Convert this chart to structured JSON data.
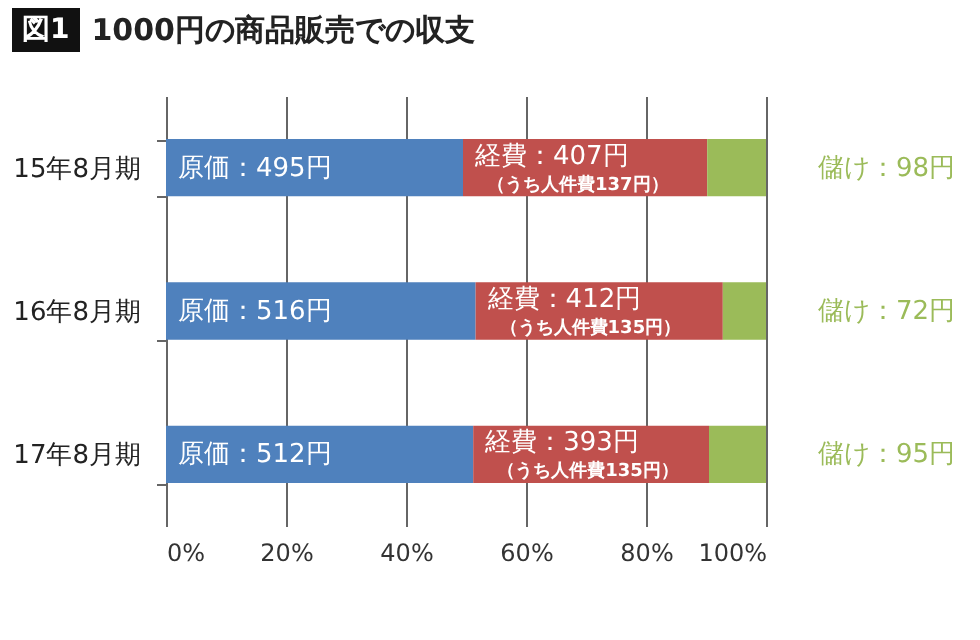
{
  "chart_data": {
    "type": "bar",
    "orientation": "horizontal",
    "stacked": true,
    "title": "1000円の商品販売での収支",
    "annotations": [
      "図1",
      {
        "text": "原価：495円",
        "x": 0,
        "y": "15年8月期"
      },
      {
        "text": "経費：407円",
        "x": 49.5,
        "y": "15年8月期"
      },
      {
        "text": "（うち人件費137円）",
        "x": 49.5,
        "y": "15年8月期"
      },
      {
        "text": "儲け：98円",
        "x": 100,
        "y": "15年8月期"
      },
      {
        "text": "原価：516円",
        "x": 0,
        "y": "16年8月期"
      },
      {
        "text": "経費：412円",
        "x": 51.6,
        "y": "16年8月期"
      },
      {
        "text": "（うち人件費135円）",
        "x": 51.6,
        "y": "16年8月期"
      },
      {
        "text": "儲け：72円",
        "x": 100,
        "y": "16年8月期"
      },
      {
        "text": "原価：512円",
        "x": 0,
        "y": "17年8月期"
      },
      {
        "text": "経費：393円",
        "x": 51.2,
        "y": "17年8月期"
      },
      {
        "text": "（うち人件費135円）",
        "x": 51.2,
        "y": "17年8月期"
      },
      {
        "text": "儲け：95円",
        "x": 100,
        "y": "17年8月期"
      }
    ],
    "categories": [
      "15年8月期",
      "16年8月期",
      "17年8月期"
    ],
    "series": [
      {
        "color": "#4f81bd",
        "values": [
          49.5,
          51.6,
          51.2
        ]
      },
      {
        "color": "#c0504d",
        "values": [
          40.7,
          41.2,
          39.3
        ]
      },
      {
        "color": "#9bbb59",
        "values": [
          9.8,
          7.2,
          9.5
        ]
      }
    ],
    "xlim": [
      0,
      100
    ],
    "xticks": [
      {
        "value": 0,
        "label": "0%"
      },
      {
        "value": 20,
        "label": "20%"
      },
      {
        "value": 40,
        "label": "40%"
      },
      {
        "value": 60,
        "label": "60%"
      },
      {
        "value": 80,
        "label": "80%"
      },
      {
        "value": 100,
        "label": "100%"
      }
    ],
    "grid": "x"
  }
}
